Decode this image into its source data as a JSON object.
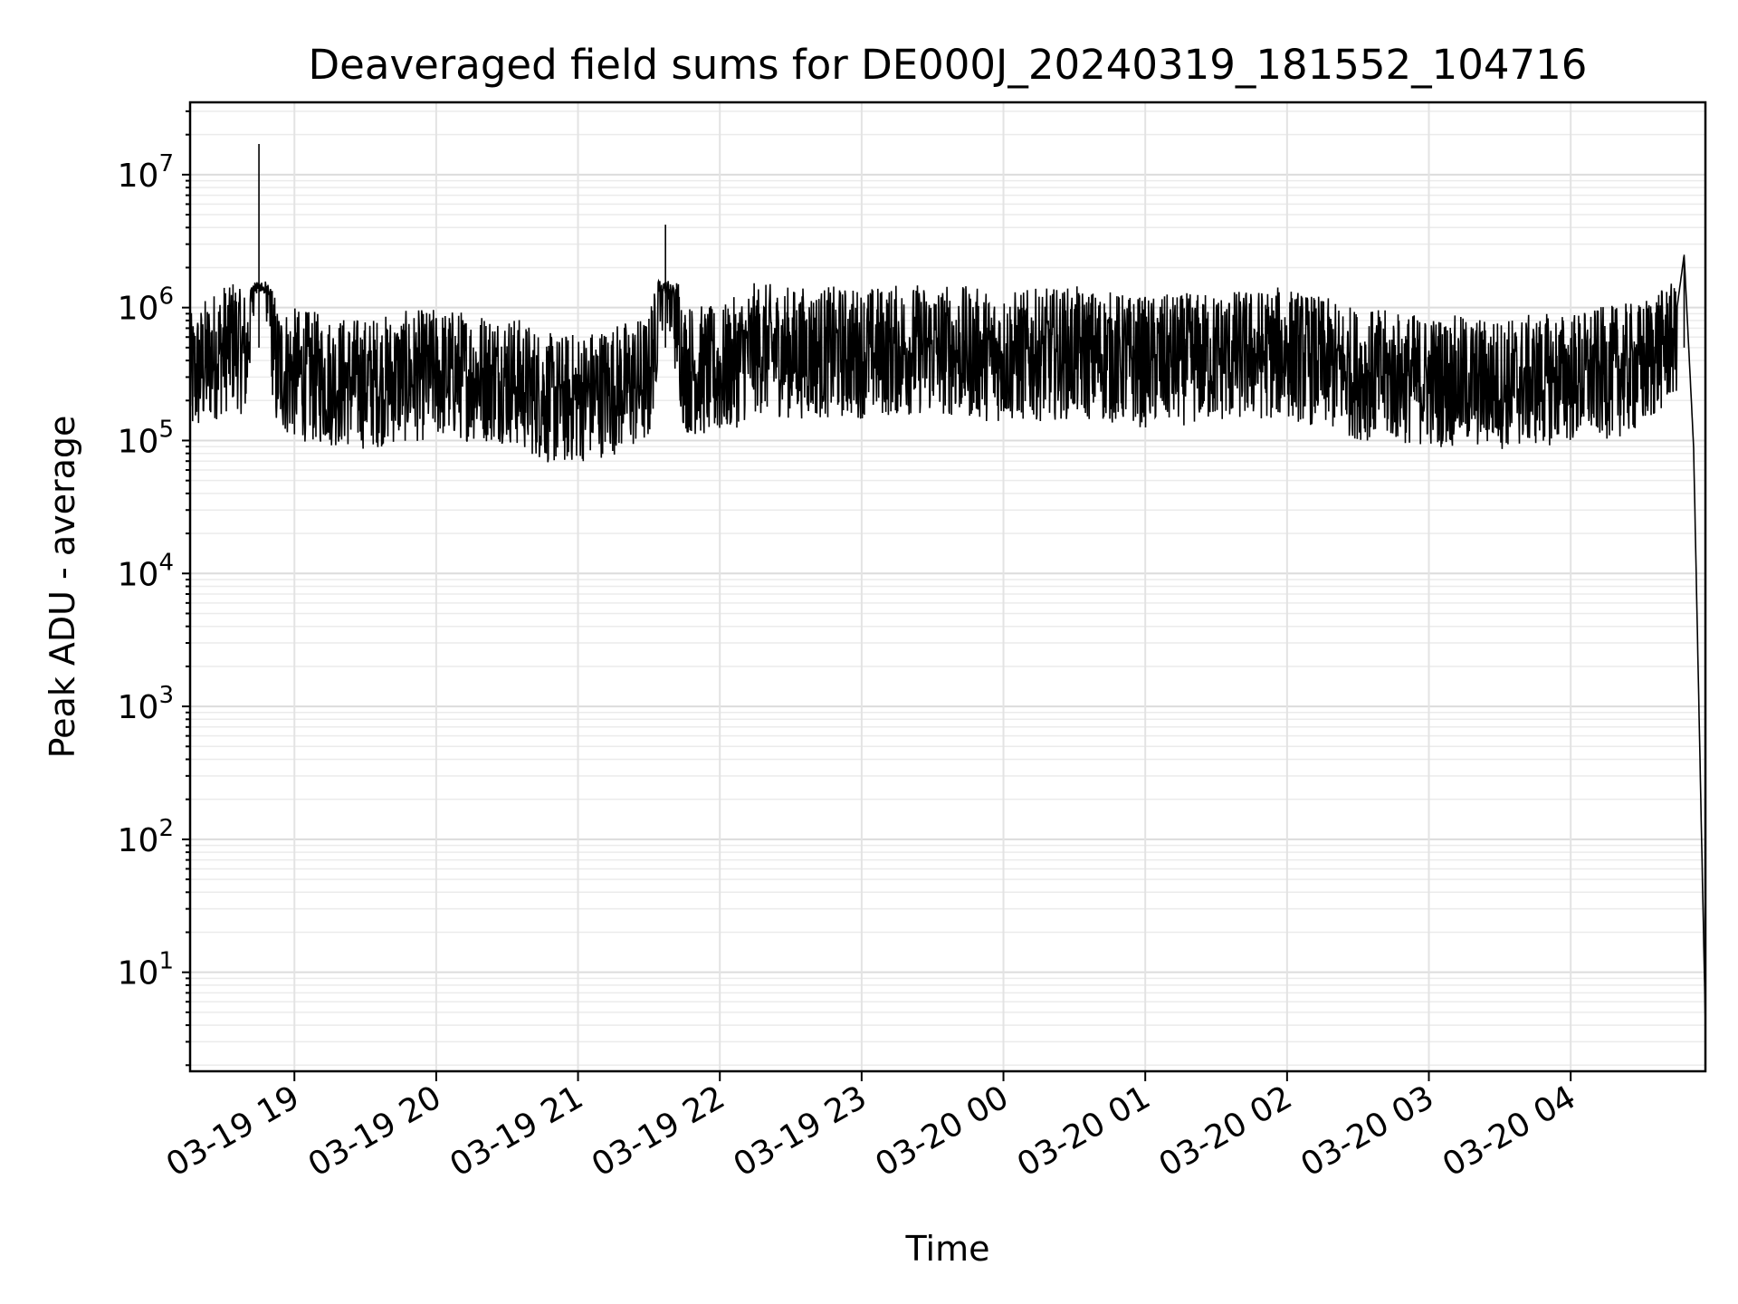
{
  "chart_data": {
    "type": "line",
    "title": "Deaveraged field sums for DE000J_20240319_181552_104716",
    "xlabel": "Time",
    "ylabel": "Peak ADU - average",
    "yscale": "log",
    "ylim": [
      1.8,
      35000000
    ],
    "xlim": [
      "2024-03-19 18:15:52",
      "2024-03-20 04:57:00"
    ],
    "grid": true,
    "line_color": "#000000",
    "x_ticks": [
      "03-19 19",
      "03-19 20",
      "03-19 21",
      "03-19 22",
      "03-19 23",
      "03-20 00",
      "03-20 01",
      "03-20 02",
      "03-20 03",
      "03-20 04"
    ],
    "y_ticks": [
      {
        "base": "10",
        "exp": "1"
      },
      {
        "base": "10",
        "exp": "2"
      },
      {
        "base": "10",
        "exp": "3"
      },
      {
        "base": "10",
        "exp": "4"
      },
      {
        "base": "10",
        "exp": "5"
      },
      {
        "base": "10",
        "exp": "6"
      },
      {
        "base": "10",
        "exp": "7"
      }
    ],
    "series": [
      {
        "x": [
          "2024-03-19 18:15:52",
          "2024-03-19 18:25:00",
          "2024-03-19 18:35:00",
          "2024-03-19 18:40:00",
          "2024-03-19 18:45:00",
          "2024-03-19 18:52:00",
          "2024-03-19 19:00:00",
          "2024-03-19 19:15:00",
          "2024-03-19 19:30:00",
          "2024-03-19 19:45:00",
          "2024-03-19 20:00:00",
          "2024-03-19 20:30:00",
          "2024-03-19 20:50:00",
          "2024-03-19 21:00:00",
          "2024-03-19 21:30:00",
          "2024-03-19 21:37:00",
          "2024-03-19 21:45:00",
          "2024-03-19 22:00:00",
          "2024-03-19 22:15:00",
          "2024-03-19 22:30:00",
          "2024-03-19 23:00:00",
          "2024-03-19 23:30:00",
          "2024-03-20 00:00:00",
          "2024-03-20 00:30:00",
          "2024-03-20 01:00:00",
          "2024-03-20 01:30:00",
          "2024-03-20 02:00:00",
          "2024-03-20 02:30:00",
          "2024-03-20 03:00:00",
          "2024-03-20 03:30:00",
          "2024-03-20 04:00:00",
          "2024-03-20 04:30:00",
          "2024-03-20 04:45:00",
          "2024-03-20 04:48:00",
          "2024-03-20 04:52:00",
          "2024-03-20 04:57:00"
        ],
        "y": [
          400000,
          600000,
          800000,
          600000,
          17000000,
          500000,
          450000,
          400000,
          380000,
          420000,
          450000,
          420000,
          280000,
          300000,
          400000,
          4200000,
          500000,
          450000,
          700000,
          650000,
          650000,
          700000,
          600000,
          650000,
          550000,
          600000,
          650000,
          450000,
          400000,
          380000,
          420000,
          500000,
          1000000,
          2500000,
          90000,
          4
        ]
      }
    ]
  }
}
